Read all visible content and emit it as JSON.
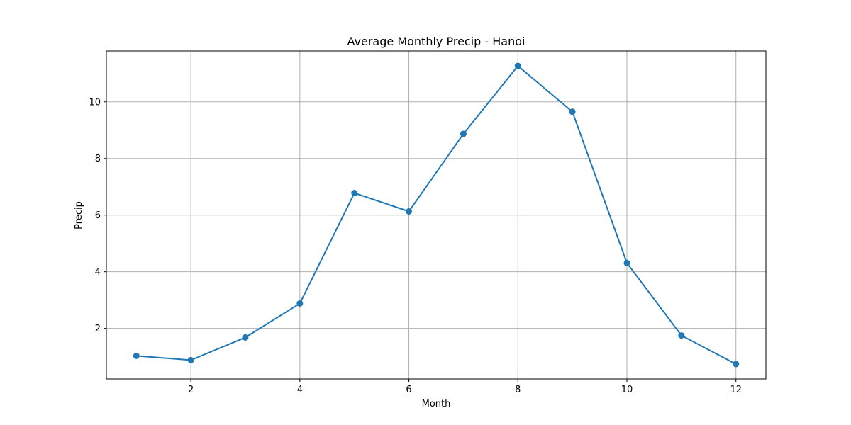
{
  "chart_data": {
    "type": "line",
    "title": "Average Monthly Precip - Hanoi",
    "xlabel": "Month",
    "ylabel": "Precip",
    "x": [
      1,
      2,
      3,
      4,
      5,
      6,
      7,
      8,
      9,
      10,
      11,
      12
    ],
    "series": [
      {
        "values": [
          1.03,
          0.88,
          1.68,
          2.88,
          6.78,
          6.13,
          8.87,
          11.27,
          9.65,
          4.31,
          1.75,
          0.74
        ],
        "color": "#1f77b4",
        "marker": "circle"
      }
    ],
    "xticks": [
      2,
      4,
      6,
      8,
      10,
      12
    ],
    "yticks": [
      2,
      4,
      6,
      8,
      10
    ],
    "xlim": [
      0.45,
      12.55
    ],
    "ylim": [
      0.214,
      11.796
    ],
    "grid": true,
    "legend": "none"
  }
}
